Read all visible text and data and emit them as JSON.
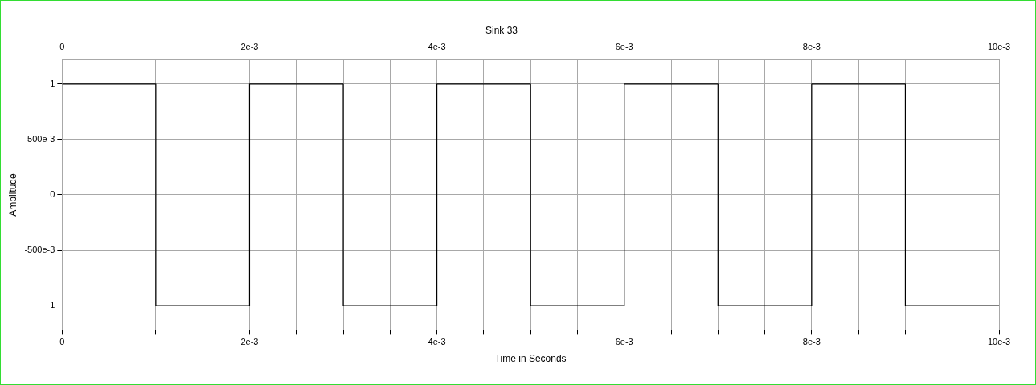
{
  "chart_data": {
    "type": "step",
    "title": "Sink 33",
    "xlabel": "Time in Seconds",
    "ylabel": "Amplitude",
    "x": [
      0,
      0.001,
      0.002,
      0.003,
      0.004,
      0.005,
      0.006,
      0.007,
      0.008,
      0.009,
      0.01
    ],
    "series": [
      {
        "color": "#000000",
        "values": [
          1,
          -1,
          1,
          -1,
          1,
          -1,
          1,
          -1,
          1,
          -1,
          -1
        ]
      }
    ],
    "xlim": [
      0,
      0.01
    ],
    "xticks": [
      0,
      {
        "value": 0.0005,
        "label": null
      },
      {
        "value": 0.001,
        "label": null
      },
      {
        "value": 0.0015,
        "label": null
      },
      {
        "value": 0.002,
        "label": "2e-3"
      },
      {
        "value": 0.0025,
        "label": null
      },
      {
        "value": 0.003,
        "label": null
      },
      {
        "value": 0.0035,
        "label": null
      },
      {
        "value": 0.004,
        "label": "4e-3"
      },
      {
        "value": 0.0045,
        "label": null
      },
      {
        "value": 0.005,
        "label": null
      },
      {
        "value": 0.0055,
        "label": null
      },
      {
        "value": 0.006,
        "label": "6e-3"
      },
      {
        "value": 0.0065,
        "label": null
      },
      {
        "value": 0.007,
        "label": null
      },
      {
        "value": 0.0075,
        "label": null
      },
      {
        "value": 0.008,
        "label": "8e-3"
      },
      {
        "value": 0.0085,
        "label": null
      },
      {
        "value": 0.009,
        "label": null
      },
      {
        "value": 0.0095,
        "label": null
      },
      {
        "value": 0.01,
        "label": "10e-3"
      }
    ],
    "x2lim": [
      0,
      0.01
    ],
    "x2ticks": [
      0,
      {
        "value": 0.0005,
        "label": null
      },
      {
        "value": 0.001,
        "label": null
      },
      {
        "value": 0.0015,
        "label": null
      },
      {
        "value": 0.002,
        "label": "2e-3"
      },
      {
        "value": 0.0025,
        "label": null
      },
      {
        "value": 0.003,
        "label": null
      },
      {
        "value": 0.0035,
        "label": null
      },
      {
        "value": 0.004,
        "label": "4e-3"
      },
      {
        "value": 0.0045,
        "label": null
      },
      {
        "value": 0.005,
        "label": null
      },
      {
        "value": 0.0055,
        "label": null
      },
      {
        "value": 0.006,
        "label": "6e-3"
      },
      {
        "value": 0.0065,
        "label": null
      },
      {
        "value": 0.007,
        "label": null
      },
      {
        "value": 0.0075,
        "label": null
      },
      {
        "value": 0.008,
        "label": "8e-3"
      },
      {
        "value": 0.0085,
        "label": null
      },
      {
        "value": 0.009,
        "label": null
      },
      {
        "value": 0.0095,
        "label": null
      },
      {
        "value": 0.01,
        "label": "10e-3"
      }
    ],
    "ylim": [
      -1.22,
      1.22
    ],
    "yticks": [
      -1,
      {
        "value": -0.5,
        "label": "-500e-3"
      },
      0,
      {
        "value": 0.5,
        "label": "500e-3"
      },
      1
    ],
    "grid": true,
    "marker": "none",
    "line_style": "solid"
  }
}
